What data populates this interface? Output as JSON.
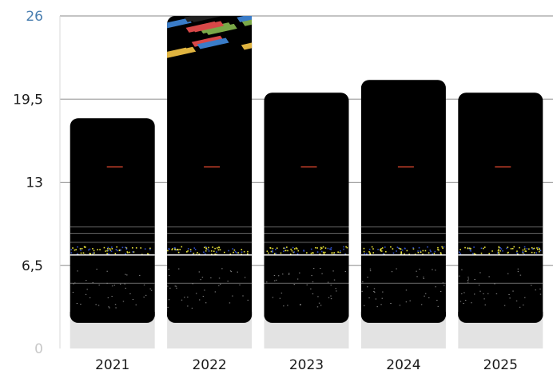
{
  "chart_data": {
    "type": "bar",
    "title": "",
    "xlabel": "",
    "ylabel": "",
    "categories": [
      "2021",
      "2022",
      "2023",
      "2024",
      "2025"
    ],
    "values": [
      18,
      26,
      20,
      21,
      20
    ],
    "ylim": [
      0,
      26
    ],
    "yticks": [
      0,
      6.5,
      13,
      19.5,
      26
    ],
    "ytick_labels": [
      "0",
      "6,5",
      "13",
      "19,5",
      "26"
    ],
    "grid": true,
    "legend": "none",
    "colors": {
      "bar": "#000000",
      "bar_base": "#e3e3e3",
      "grid": "#8a8a8a",
      "speckle_yellow": "#e8e23a",
      "speckle_blue": "#3050c8",
      "dash_red": "#c8402a",
      "stripes": [
        "#e0b440",
        "#3a7cc8",
        "#7aa848",
        "#d84848",
        "#202020"
      ]
    }
  }
}
